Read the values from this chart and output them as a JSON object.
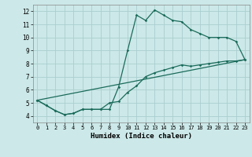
{
  "title": "",
  "xlabel": "Humidex (Indice chaleur)",
  "xlim": [
    -0.5,
    23.5
  ],
  "ylim": [
    3.5,
    12.5
  ],
  "xticks": [
    0,
    1,
    2,
    3,
    4,
    5,
    6,
    7,
    8,
    9,
    10,
    11,
    12,
    13,
    14,
    15,
    16,
    17,
    18,
    19,
    20,
    21,
    22,
    23
  ],
  "yticks": [
    4,
    5,
    6,
    7,
    8,
    9,
    10,
    11,
    12
  ],
  "bg_color": "#cce8e8",
  "grid_color": "#aacece",
  "line_color": "#1a6b5a",
  "line1_x": [
    0,
    1,
    2,
    3,
    4,
    5,
    6,
    7,
    8,
    9,
    10,
    11,
    12,
    13,
    14,
    15,
    16,
    17,
    18,
    19,
    20,
    21,
    22,
    23
  ],
  "line1_y": [
    5.2,
    4.8,
    4.4,
    4.1,
    4.2,
    4.5,
    4.5,
    4.5,
    4.5,
    6.2,
    9.0,
    11.7,
    11.3,
    12.1,
    11.7,
    11.3,
    11.2,
    10.6,
    10.3,
    10.0,
    10.0,
    10.0,
    9.7,
    8.3
  ],
  "line2_x": [
    0,
    1,
    2,
    3,
    4,
    5,
    6,
    7,
    8,
    9,
    10,
    11,
    12,
    13,
    14,
    15,
    16,
    17,
    18,
    19,
    20,
    21,
    22,
    23
  ],
  "line2_y": [
    5.2,
    4.8,
    4.4,
    4.1,
    4.2,
    4.5,
    4.5,
    4.5,
    5.0,
    5.1,
    5.8,
    6.3,
    7.0,
    7.3,
    7.5,
    7.7,
    7.9,
    7.8,
    7.9,
    8.0,
    8.1,
    8.2,
    8.2,
    8.3
  ],
  "line3_x": [
    0,
    23
  ],
  "line3_y": [
    5.2,
    8.3
  ]
}
